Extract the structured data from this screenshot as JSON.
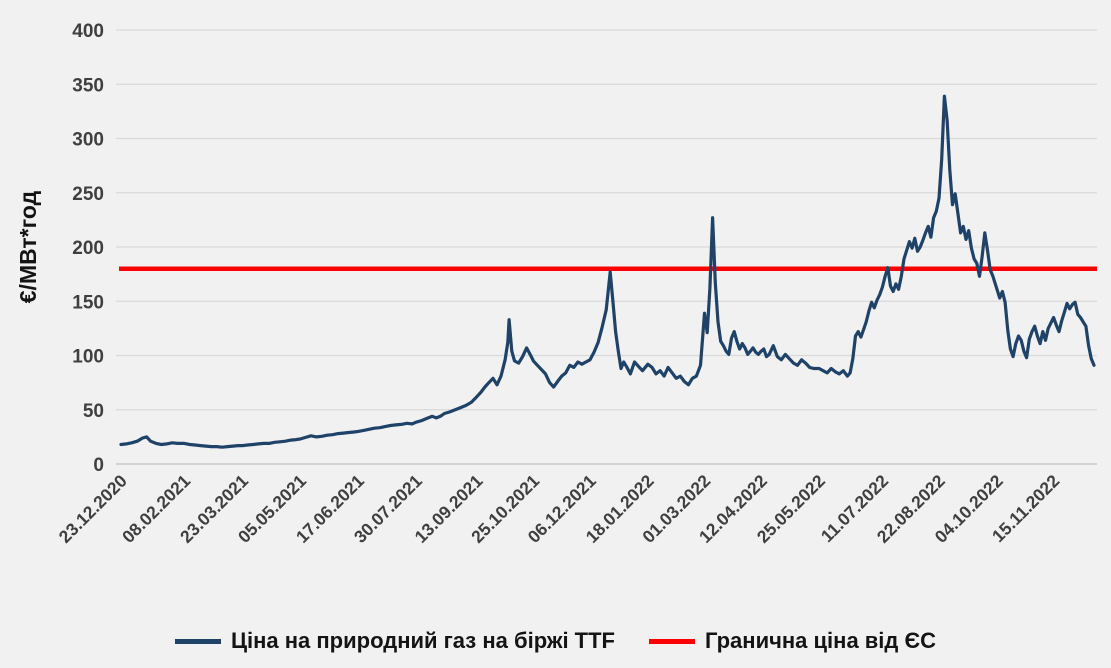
{
  "chart_data": {
    "type": "line",
    "title": "",
    "xlabel": "",
    "ylabel": "€/МВт*год",
    "ylim": [
      0,
      400
    ],
    "yticks": [
      0,
      50,
      100,
      150,
      200,
      250,
      300,
      350,
      400
    ],
    "grid": "horizontal",
    "legend_position": "bottom",
    "x_tick_labels": [
      "23.12.2020",
      "08.02.2021",
      "23.03.2021",
      "05.05.2021",
      "17.06.2021",
      "30.07.2021",
      "13.09.2021",
      "25.10.2021",
      "06.12.2021",
      "18.01.2022",
      "01.03.2022",
      "12.04.2022",
      "25.05.2022",
      "11.07.2022",
      "22.08.2022",
      "04.10.2022",
      "15.11.2022"
    ],
    "x_tick_days": [
      0,
      47,
      90,
      133,
      176,
      219,
      264,
      306,
      348,
      391,
      433,
      475,
      518,
      565,
      607,
      650,
      692
    ],
    "x_range_days": [
      0,
      722
    ],
    "series": [
      {
        "name": "Ціна на природний газ на біржі TTF",
        "color": "#1f4268",
        "stroke_width": 3.2,
        "points": [
          [
            0,
            18
          ],
          [
            4,
            18.5
          ],
          [
            8,
            19.5
          ],
          [
            12,
            21
          ],
          [
            16,
            24
          ],
          [
            19,
            25
          ],
          [
            22,
            21
          ],
          [
            26,
            19
          ],
          [
            30,
            18
          ],
          [
            34,
            18.5
          ],
          [
            38,
            19.5
          ],
          [
            42,
            19
          ],
          [
            47,
            19
          ],
          [
            51,
            18
          ],
          [
            55,
            17.5
          ],
          [
            59,
            17
          ],
          [
            63,
            16.5
          ],
          [
            67,
            16
          ],
          [
            71,
            16
          ],
          [
            75,
            15.5
          ],
          [
            79,
            16
          ],
          [
            83,
            16.5
          ],
          [
            87,
            17
          ],
          [
            90,
            17
          ],
          [
            94,
            17.5
          ],
          [
            98,
            18
          ],
          [
            102,
            18.5
          ],
          [
            106,
            19
          ],
          [
            110,
            19
          ],
          [
            114,
            20
          ],
          [
            118,
            20.5
          ],
          [
            122,
            21
          ],
          [
            126,
            22
          ],
          [
            130,
            22.5
          ],
          [
            133,
            23
          ],
          [
            137,
            24.5
          ],
          [
            141,
            26
          ],
          [
            145,
            25
          ],
          [
            149,
            25.5
          ],
          [
            153,
            26.5
          ],
          [
            157,
            27
          ],
          [
            161,
            28
          ],
          [
            165,
            28.5
          ],
          [
            169,
            29
          ],
          [
            173,
            29.5
          ],
          [
            176,
            30
          ],
          [
            180,
            31
          ],
          [
            184,
            32
          ],
          [
            188,
            33
          ],
          [
            192,
            33.5
          ],
          [
            196,
            34.5
          ],
          [
            200,
            35.5
          ],
          [
            204,
            36
          ],
          [
            208,
            36.5
          ],
          [
            212,
            37.5
          ],
          [
            216,
            37
          ],
          [
            219,
            38.5
          ],
          [
            223,
            40
          ],
          [
            227,
            42
          ],
          [
            231,
            44
          ],
          [
            234,
            42.5
          ],
          [
            237,
            44
          ],
          [
            240,
            46.5
          ],
          [
            244,
            48
          ],
          [
            248,
            50
          ],
          [
            252,
            52
          ],
          [
            256,
            54
          ],
          [
            260,
            57
          ],
          [
            264,
            62
          ],
          [
            267,
            66
          ],
          [
            270,
            71
          ],
          [
            273,
            75
          ],
          [
            276,
            79
          ],
          [
            279,
            73
          ],
          [
            282,
            81
          ],
          [
            285,
            96
          ],
          [
            287,
            112
          ],
          [
            288,
            133
          ],
          [
            290,
            104
          ],
          [
            292,
            95
          ],
          [
            295,
            93
          ],
          [
            298,
            99
          ],
          [
            301,
            107
          ],
          [
            304,
            100
          ],
          [
            306,
            95
          ],
          [
            309,
            91
          ],
          [
            312,
            87
          ],
          [
            315,
            83
          ],
          [
            318,
            75
          ],
          [
            321,
            71
          ],
          [
            324,
            76
          ],
          [
            327,
            81
          ],
          [
            330,
            84
          ],
          [
            333,
            91
          ],
          [
            336,
            89
          ],
          [
            339,
            94
          ],
          [
            342,
            92
          ],
          [
            345,
            94
          ],
          [
            348,
            96
          ],
          [
            351,
            103
          ],
          [
            354,
            112
          ],
          [
            357,
            126
          ],
          [
            360,
            142
          ],
          [
            363,
            177
          ],
          [
            365,
            150
          ],
          [
            367,
            122
          ],
          [
            369,
            104
          ],
          [
            371,
            88
          ],
          [
            373,
            94
          ],
          [
            375,
            90
          ],
          [
            378,
            83
          ],
          [
            381,
            94
          ],
          [
            384,
            90
          ],
          [
            387,
            86
          ],
          [
            391,
            92
          ],
          [
            394,
            89
          ],
          [
            397,
            83
          ],
          [
            400,
            86
          ],
          [
            403,
            81
          ],
          [
            406,
            89
          ],
          [
            409,
            84
          ],
          [
            412,
            79
          ],
          [
            415,
            81
          ],
          [
            418,
            76
          ],
          [
            421,
            73
          ],
          [
            424,
            79
          ],
          [
            427,
            81
          ],
          [
            430,
            91
          ],
          [
            433,
            139
          ],
          [
            435,
            121
          ],
          [
            437,
            162
          ],
          [
            439,
            227
          ],
          [
            441,
            167
          ],
          [
            443,
            131
          ],
          [
            445,
            113
          ],
          [
            447,
            109
          ],
          [
            449,
            104
          ],
          [
            451,
            101
          ],
          [
            453,
            116
          ],
          [
            455,
            122
          ],
          [
            457,
            113
          ],
          [
            459,
            106
          ],
          [
            461,
            111
          ],
          [
            463,
            107
          ],
          [
            465,
            101
          ],
          [
            467,
            104
          ],
          [
            469,
            107
          ],
          [
            471,
            103
          ],
          [
            473,
            101
          ],
          [
            475,
            104
          ],
          [
            477,
            106
          ],
          [
            479,
            99
          ],
          [
            481,
            101
          ],
          [
            484,
            109
          ],
          [
            487,
            99
          ],
          [
            490,
            96
          ],
          [
            493,
            101
          ],
          [
            496,
            97
          ],
          [
            499,
            93
          ],
          [
            502,
            91
          ],
          [
            505,
            96
          ],
          [
            508,
            93
          ],
          [
            511,
            89
          ],
          [
            514,
            88
          ],
          [
            518,
            88
          ],
          [
            521,
            86
          ],
          [
            524,
            84
          ],
          [
            527,
            88
          ],
          [
            530,
            85
          ],
          [
            533,
            83
          ],
          [
            536,
            86
          ],
          [
            539,
            81
          ],
          [
            541,
            84
          ],
          [
            543,
            97
          ],
          [
            545,
            118
          ],
          [
            547,
            122
          ],
          [
            549,
            117
          ],
          [
            551,
            124
          ],
          [
            553,
            131
          ],
          [
            555,
            141
          ],
          [
            557,
            149
          ],
          [
            559,
            144
          ],
          [
            561,
            151
          ],
          [
            563,
            156
          ],
          [
            565,
            163
          ],
          [
            567,
            173
          ],
          [
            569,
            181
          ],
          [
            571,
            164
          ],
          [
            573,
            159
          ],
          [
            575,
            166
          ],
          [
            577,
            161
          ],
          [
            579,
            173
          ],
          [
            581,
            189
          ],
          [
            583,
            197
          ],
          [
            585,
            205
          ],
          [
            587,
            199
          ],
          [
            589,
            208
          ],
          [
            591,
            196
          ],
          [
            593,
            200
          ],
          [
            595,
            206
          ],
          [
            597,
            213
          ],
          [
            599,
            219
          ],
          [
            601,
            209
          ],
          [
            603,
            227
          ],
          [
            605,
            233
          ],
          [
            607,
            245
          ],
          [
            609,
            281
          ],
          [
            611,
            339
          ],
          [
            613,
            317
          ],
          [
            615,
            271
          ],
          [
            617,
            239
          ],
          [
            619,
            249
          ],
          [
            621,
            231
          ],
          [
            623,
            213
          ],
          [
            625,
            219
          ],
          [
            627,
            207
          ],
          [
            629,
            215
          ],
          [
            631,
            199
          ],
          [
            633,
            189
          ],
          [
            635,
            185
          ],
          [
            637,
            173
          ],
          [
            639,
            191
          ],
          [
            641,
            213
          ],
          [
            643,
            197
          ],
          [
            645,
            179
          ],
          [
            647,
            173
          ],
          [
            650,
            161
          ],
          [
            652,
            153
          ],
          [
            654,
            159
          ],
          [
            656,
            149
          ],
          [
            658,
            123
          ],
          [
            660,
            106
          ],
          [
            662,
            99
          ],
          [
            664,
            111
          ],
          [
            666,
            118
          ],
          [
            668,
            114
          ],
          [
            670,
            104
          ],
          [
            672,
            98
          ],
          [
            674,
            115
          ],
          [
            676,
            122
          ],
          [
            678,
            127
          ],
          [
            680,
            118
          ],
          [
            682,
            111
          ],
          [
            684,
            122
          ],
          [
            686,
            114
          ],
          [
            688,
            125
          ],
          [
            690,
            130
          ],
          [
            692,
            135
          ],
          [
            694,
            128
          ],
          [
            696,
            122
          ],
          [
            698,
            132
          ],
          [
            700,
            140
          ],
          [
            702,
            148
          ],
          [
            704,
            143
          ],
          [
            706,
            147
          ],
          [
            708,
            149
          ],
          [
            710,
            138
          ],
          [
            712,
            135
          ],
          [
            714,
            131
          ],
          [
            716,
            127
          ],
          [
            718,
            109
          ],
          [
            720,
            97
          ],
          [
            722,
            91
          ]
        ]
      },
      {
        "name": "Гранична ціна від ЄС",
        "color": "#fe0000",
        "stroke_width": 4.5,
        "constant_value": 180
      }
    ]
  },
  "style": {
    "background": "#f1f1f1",
    "gridline_color": "#d9d9d9",
    "axis_line_color": "#bfbfbf",
    "tick_label_color": "#3f3f3f"
  }
}
